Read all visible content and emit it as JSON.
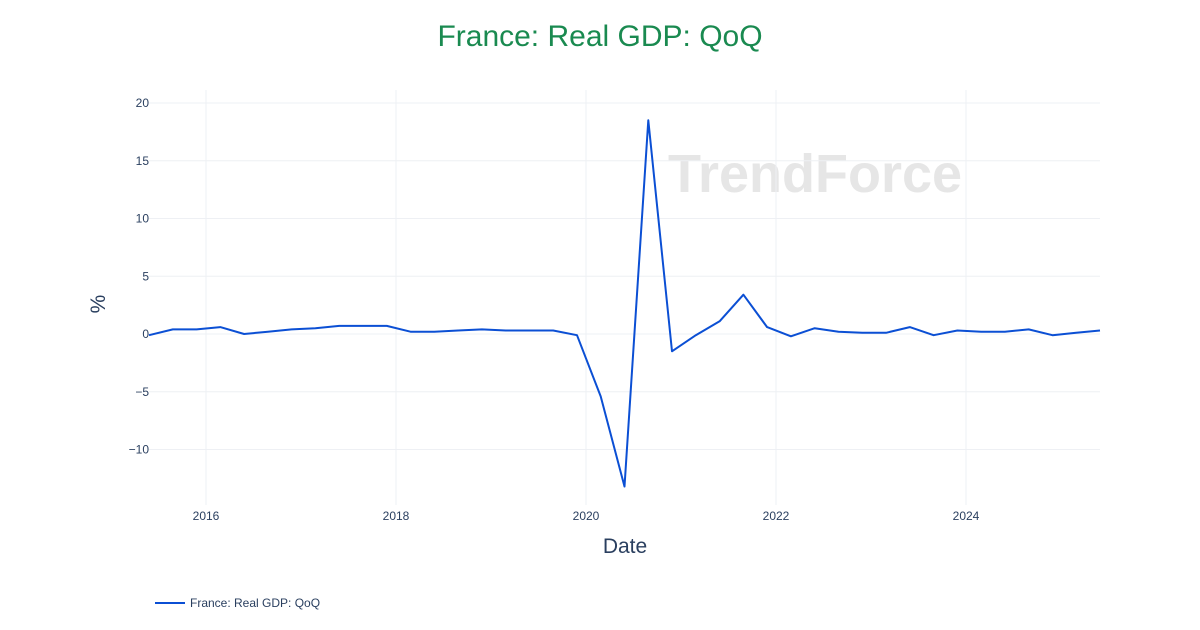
{
  "title": "France: Real GDP: QoQ",
  "watermark": "TrendForce",
  "colors": {
    "line": "#0b4fd4",
    "title": "#1a8a50",
    "grid": "#eef0f4",
    "text": "#2a3f5f"
  },
  "legend": {
    "label": "France: Real GDP: QoQ"
  },
  "chart_data": {
    "type": "line",
    "title": "France: Real GDP: QoQ",
    "xlabel": "Date",
    "ylabel": "%",
    "x_ticks": [
      "2016",
      "2018",
      "2020",
      "2022",
      "2024"
    ],
    "y_ticks": [
      -10,
      -5,
      0,
      5,
      10,
      15,
      20
    ],
    "grid": true,
    "legend_position": "bottom-left",
    "series": [
      {
        "name": "France: Real GDP: QoQ",
        "x": [
          "2015-Q3",
          "2015-Q4",
          "2016-Q1",
          "2016-Q2",
          "2016-Q3",
          "2016-Q4",
          "2017-Q1",
          "2017-Q2",
          "2017-Q3",
          "2017-Q4",
          "2018-Q1",
          "2018-Q2",
          "2018-Q3",
          "2018-Q4",
          "2019-Q1",
          "2019-Q2",
          "2019-Q3",
          "2019-Q4",
          "2020-Q1",
          "2020-Q2",
          "2020-Q3",
          "2020-Q4",
          "2021-Q1",
          "2021-Q2",
          "2021-Q3",
          "2021-Q4",
          "2022-Q1",
          "2022-Q2",
          "2022-Q3",
          "2022-Q4",
          "2023-Q1",
          "2023-Q2",
          "2023-Q3",
          "2023-Q4",
          "2024-Q1",
          "2024-Q2",
          "2024-Q3",
          "2024-Q4",
          "2025-Q1",
          "2025-Q2",
          "2025-Q3"
        ],
        "values": [
          -0.1,
          0.4,
          0.4,
          0.6,
          0.0,
          0.2,
          0.4,
          0.5,
          0.7,
          0.7,
          0.7,
          0.2,
          0.2,
          0.3,
          0.4,
          0.3,
          0.3,
          0.3,
          -0.1,
          -5.4,
          -13.2,
          18.5,
          -1.5,
          -0.1,
          1.1,
          3.4,
          0.6,
          -0.2,
          0.5,
          0.2,
          0.1,
          0.1,
          0.6,
          -0.1,
          0.3,
          0.2,
          0.2,
          0.4,
          -0.1,
          0.1,
          0.3
        ]
      }
    ]
  }
}
